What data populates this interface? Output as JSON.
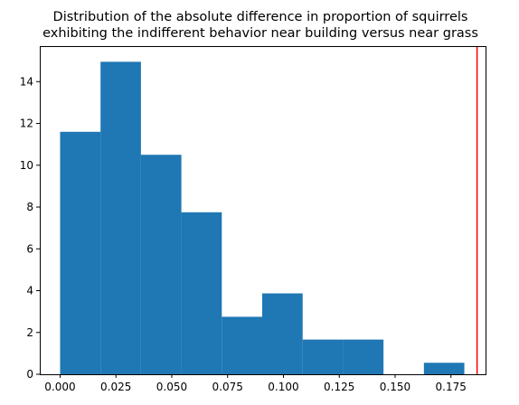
{
  "chart_data": {
    "type": "bar",
    "title_lines": [
      "Distribution of the absolute difference in proportion of squirrels",
      "exhibiting the indifferent behavior near building versus near grass"
    ],
    "xlabel": "",
    "ylabel": "",
    "xlim": [
      -0.0091,
      0.1905
    ],
    "ylim": [
      0,
      15.7
    ],
    "bins": [
      {
        "start": 0.0,
        "end": 0.0181,
        "value": 11.6
      },
      {
        "start": 0.0181,
        "end": 0.0362,
        "value": 14.95
      },
      {
        "start": 0.0362,
        "end": 0.0543,
        "value": 10.5
      },
      {
        "start": 0.0543,
        "end": 0.0724,
        "value": 7.75
      },
      {
        "start": 0.0724,
        "end": 0.0905,
        "value": 2.75
      },
      {
        "start": 0.0905,
        "end": 0.1086,
        "value": 3.87
      },
      {
        "start": 0.1086,
        "end": 0.1267,
        "value": 1.66
      },
      {
        "start": 0.1267,
        "end": 0.1448,
        "value": 1.66
      },
      {
        "start": 0.1448,
        "end": 0.1629,
        "value": 0
      },
      {
        "start": 0.1629,
        "end": 0.181,
        "value": 0.55
      }
    ],
    "xticks": [
      {
        "value": 0.0,
        "label": "0.000"
      },
      {
        "value": 0.025,
        "label": "0.025"
      },
      {
        "value": 0.05,
        "label": "0.050"
      },
      {
        "value": 0.075,
        "label": "0.075"
      },
      {
        "value": 0.1,
        "label": "0.100"
      },
      {
        "value": 0.125,
        "label": "0.125"
      },
      {
        "value": 0.15,
        "label": "0.150"
      },
      {
        "value": 0.175,
        "label": "0.175"
      }
    ],
    "yticks": [
      {
        "value": 0,
        "label": "0"
      },
      {
        "value": 2,
        "label": "2"
      },
      {
        "value": 4,
        "label": "4"
      },
      {
        "value": 6,
        "label": "6"
      },
      {
        "value": 8,
        "label": "8"
      },
      {
        "value": 10,
        "label": "10"
      },
      {
        "value": 12,
        "label": "12"
      },
      {
        "value": 14,
        "label": "14"
      }
    ],
    "vline": {
      "x": 0.1867,
      "color": "#ff0000"
    },
    "bar_color": "#1f77b4",
    "grid": false
  }
}
